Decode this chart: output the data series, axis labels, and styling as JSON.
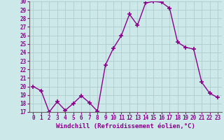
{
  "x": [
    0,
    1,
    2,
    3,
    4,
    5,
    6,
    7,
    8,
    9,
    10,
    11,
    12,
    13,
    14,
    15,
    16,
    17,
    18,
    19,
    20,
    21,
    22,
    23
  ],
  "y": [
    20,
    19.5,
    17,
    18.2,
    17.2,
    18,
    18.9,
    18.1,
    17.1,
    22.5,
    24.5,
    26,
    28.5,
    27.2,
    29.8,
    30,
    29.9,
    29.2,
    25.2,
    24.6,
    24.4,
    20.5,
    19.2,
    18.7
  ],
  "line_color": "#8B008B",
  "marker": "+",
  "marker_size": 4,
  "marker_lw": 1.2,
  "bg_color": "#cce8e8",
  "grid_color": "#aac8c8",
  "xlabel": "Windchill (Refroidissement éolien,°C)",
  "xlabel_color": "#8B008B",
  "xlabel_fontsize": 6.5,
  "tick_color": "#8B008B",
  "tick_fontsize": 5.5,
  "ylim": [
    17,
    30
  ],
  "yticks": [
    17,
    18,
    19,
    20,
    21,
    22,
    23,
    24,
    25,
    26,
    27,
    28,
    29,
    30
  ],
  "xticks": [
    0,
    1,
    2,
    3,
    4,
    5,
    6,
    7,
    8,
    9,
    10,
    11,
    12,
    13,
    14,
    15,
    16,
    17,
    18,
    19,
    20,
    21,
    22,
    23
  ],
  "linewidth": 1.0
}
